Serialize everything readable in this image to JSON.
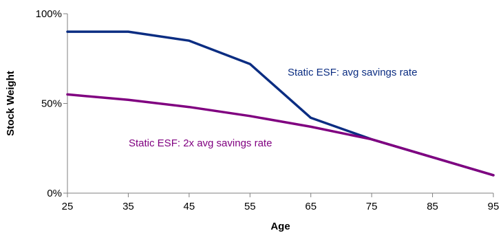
{
  "chart_data": {
    "type": "line",
    "title": "",
    "xlabel": "Age",
    "ylabel": "Stock Weight",
    "xlim": [
      25,
      95
    ],
    "ylim": [
      0,
      100
    ],
    "x_ticks": [
      "25",
      "35",
      "45",
      "55",
      "65",
      "75",
      "85",
      "95"
    ],
    "y_ticks": [
      "0%",
      "50%",
      "100%"
    ],
    "grid": false,
    "legend": "none",
    "series": [
      {
        "name": "Static ESF: avg savings rate",
        "color": "#0b2d82",
        "x": [
          25,
          35,
          45,
          55,
          65,
          75,
          85,
          95
        ],
        "y": [
          90,
          90,
          85,
          72,
          42,
          30,
          20,
          10
        ]
      },
      {
        "name": "Static ESF: 2x avg savings rate",
        "color": "#800080",
        "x": [
          25,
          35,
          45,
          55,
          65,
          75,
          85,
          95
        ],
        "y": [
          55,
          52,
          48,
          43,
          37,
          30,
          20,
          10
        ]
      }
    ]
  }
}
